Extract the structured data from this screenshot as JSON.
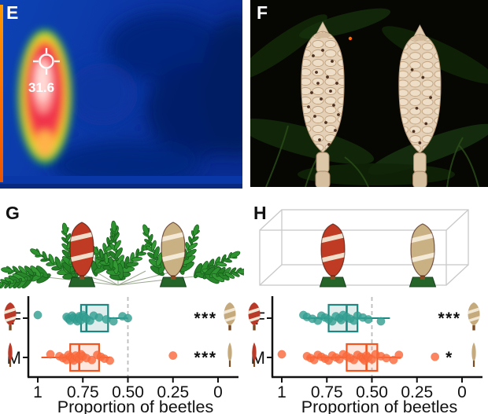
{
  "panels": {
    "e": {
      "label": "E",
      "kind": "thermal-infrared-image",
      "temperature_reading": "31.6"
    },
    "f": {
      "label": "F",
      "kind": "night-photo-two-cycad-cones"
    },
    "g": {
      "label": "G",
      "kind": "boxplot-cones-among-ferns"
    },
    "h": {
      "label": "H",
      "kind": "boxplot-cones-in-enclosure"
    }
  },
  "colors": {
    "teal_point": "#35a093",
    "teal_stroke": "#1f8780",
    "orange_point": "#f96a3d",
    "orange_stroke": "#f2551f",
    "reference_line": "#bdbdbd",
    "axis": "#111111",
    "icon_red": "#b93a28",
    "icon_tan": "#c4aa7c",
    "icon_stripe": "#f2e7d4",
    "icon_stalk": "#7a4a22"
  },
  "chart_data": [
    {
      "panel": "G",
      "type": "boxplot",
      "orientation": "horizontal",
      "x_axis": {
        "label": "Proportion of beetles",
        "ticks": [
          1,
          0.75,
          0.5,
          0.25,
          0
        ],
        "tick_labels": [
          "1",
          "0.75",
          "0.50",
          "0.25",
          "0"
        ],
        "range": [
          1,
          0
        ],
        "reversed": true
      },
      "reference_line": 0.5,
      "categories": [
        "F",
        "M"
      ],
      "series": [
        {
          "name": "F",
          "point_color": "#35a093",
          "stroke": "#1f8780",
          "q1": 0.61,
          "median": 0.73,
          "q3": 0.76,
          "whisker_low": 0.5,
          "whisker_high": 0.84,
          "points": [
            1.0,
            0.84,
            0.83,
            0.82,
            0.81,
            0.8,
            0.79,
            0.78,
            0.77,
            0.77,
            0.76,
            0.75,
            0.74,
            0.73,
            0.71,
            0.69,
            0.66,
            0.62,
            0.58,
            0.53,
            0.5
          ],
          "significance": "***"
        },
        {
          "name": "M",
          "point_color": "#f96a3d",
          "stroke": "#f2551f",
          "q1": 0.66,
          "median": 0.77,
          "q3": 0.82,
          "whisker_low": 0.6,
          "whisker_high": 0.98,
          "points": [
            0.93,
            0.88,
            0.86,
            0.84,
            0.83,
            0.82,
            0.81,
            0.8,
            0.79,
            0.78,
            0.77,
            0.76,
            0.75,
            0.73,
            0.7,
            0.67,
            0.65,
            0.63,
            0.6,
            0.25
          ],
          "significance": "***"
        }
      ]
    },
    {
      "panel": "H",
      "type": "boxplot",
      "orientation": "horizontal",
      "x_axis": {
        "label": "Proportion of beetles",
        "ticks": [
          1,
          0.75,
          0.5,
          0.25,
          0
        ],
        "tick_labels": [
          "1",
          "0.75",
          "0.50",
          "0.25",
          "0"
        ],
        "range": [
          1,
          0
        ],
        "reversed": true
      },
      "reference_line": 0.5,
      "categories": [
        "F",
        "M"
      ],
      "series": [
        {
          "name": "F",
          "point_color": "#35a093",
          "stroke": "#1f8780",
          "q1": 0.58,
          "median": 0.64,
          "q3": 0.74,
          "whisker_low": 0.4,
          "whisker_high": 0.88,
          "points": [
            0.88,
            0.86,
            0.83,
            0.8,
            0.78,
            0.76,
            0.74,
            0.72,
            0.7,
            0.68,
            0.67,
            0.66,
            0.64,
            0.62,
            0.6,
            0.58,
            0.55,
            0.52,
            0.45
          ],
          "significance": "***"
        },
        {
          "name": "M",
          "point_color": "#f96a3d",
          "stroke": "#f2551f",
          "q1": 0.47,
          "median": 0.53,
          "q3": 0.64,
          "whisker_low": 0.34,
          "whisker_high": 0.86,
          "points": [
            1.0,
            0.86,
            0.84,
            0.82,
            0.8,
            0.78,
            0.76,
            0.74,
            0.72,
            0.7,
            0.68,
            0.66,
            0.64,
            0.62,
            0.6,
            0.58,
            0.56,
            0.55,
            0.54,
            0.53,
            0.52,
            0.5,
            0.48,
            0.45,
            0.42,
            0.38,
            0.35,
            0.15
          ],
          "significance": "*"
        }
      ]
    }
  ]
}
